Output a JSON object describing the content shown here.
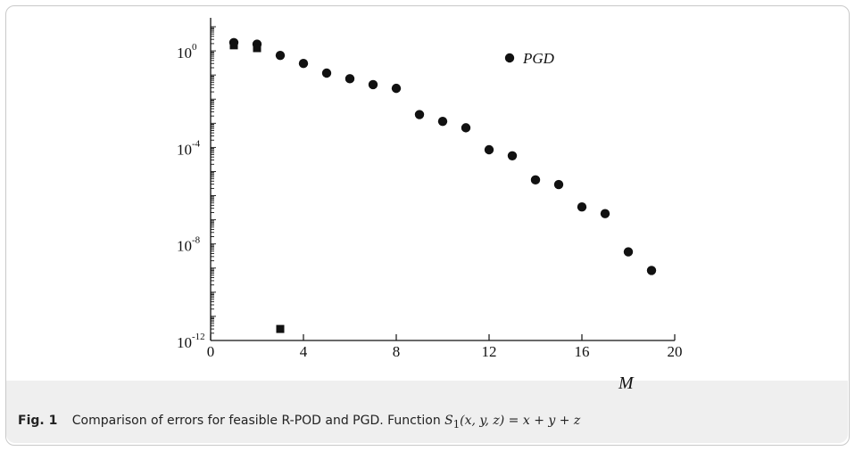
{
  "chart_data": {
    "type": "scatter",
    "xlabel": "M",
    "xlim": [
      0,
      20
    ],
    "xticks": [
      "0",
      "4",
      "8",
      "12",
      "16",
      "20"
    ],
    "yscale": "log",
    "ylim_exp": [
      -12,
      1
    ],
    "yticks": [
      {
        "base": "10",
        "exp": "0"
      },
      {
        "base": "10",
        "exp": "-4"
      },
      {
        "base": "10",
        "exp": "-8"
      },
      {
        "base": "10",
        "exp": "-12"
      }
    ],
    "legend_position": "top-right",
    "series": [
      {
        "name": "PGD",
        "marker": "circle",
        "x": [
          1,
          2,
          3,
          4,
          5,
          6,
          7,
          8,
          9,
          10,
          11,
          12,
          13,
          14,
          15,
          16,
          17,
          18,
          19
        ],
        "y": [
          2.2,
          1.9,
          0.65,
          0.3,
          0.12,
          0.07,
          0.04,
          0.028,
          0.0023,
          0.0012,
          0.00065,
          8e-05,
          4.5e-05,
          4.5e-06,
          2.9e-06,
          3.4e-07,
          1.8e-07,
          4.7e-09,
          8e-10
        ]
      },
      {
        "marker": "square",
        "x": [
          1,
          2,
          3
        ],
        "y": [
          1.7,
          1.3,
          3e-12
        ]
      }
    ]
  },
  "caption": {
    "fig_label": "Fig. 1",
    "text": "Comparison of errors for feasible R-POD and PGD. Function",
    "formula_fn": "S",
    "formula_sub": "1",
    "formula_args": "(x, y, z)",
    "formula_rhs": " = x + y + z"
  },
  "colors": {
    "marker": "#111111",
    "caption_band": "#efefef"
  }
}
